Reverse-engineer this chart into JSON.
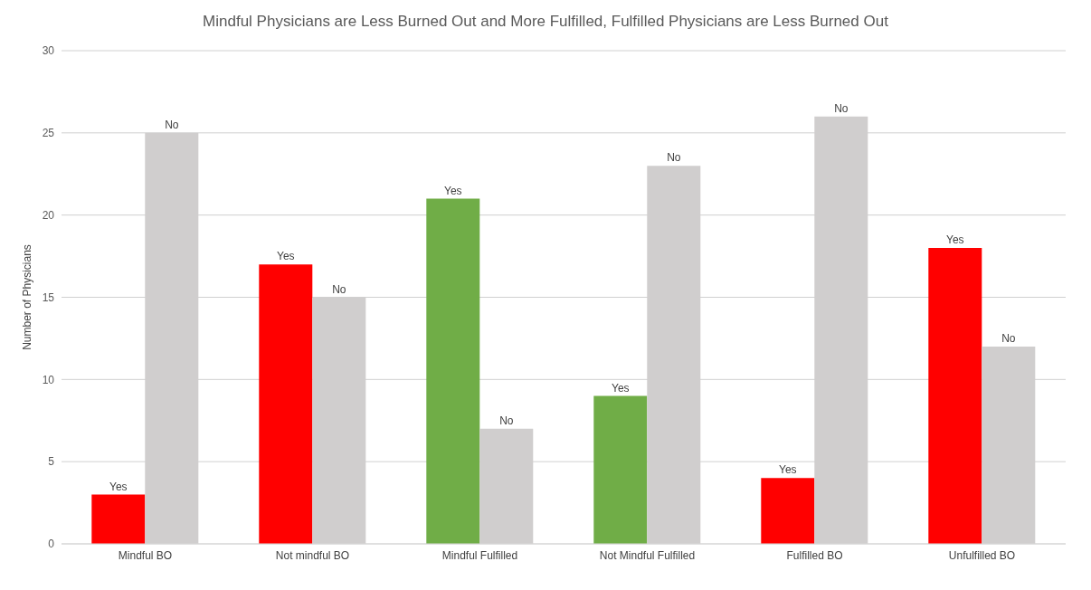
{
  "chart_data": {
    "type": "bar",
    "title": "Mindful Physicians are Less Burned Out and More Fulfilled, Fulfilled Physicians are Less Burned Out",
    "ylabel": "Number of Physicians",
    "categories": [
      "Mindful BO",
      "Not mindful BO",
      "Mindful Fulfilled",
      "Not Mindful Fulfilled",
      "Fulfilled BO",
      "Unfulfilled BO"
    ],
    "series": [
      {
        "colors": [
          "#ff0000",
          "#ff0000",
          "#70ad47",
          "#70ad47",
          "#ff0000",
          "#ff0000"
        ],
        "values": [
          3,
          17,
          21,
          9,
          4,
          18
        ],
        "value_labels": [
          "Yes",
          "Yes",
          "Yes",
          "Yes",
          "Yes",
          "Yes"
        ]
      },
      {
        "color": "#d0cece",
        "values": [
          25,
          15,
          7,
          23,
          26,
          12
        ],
        "value_labels": [
          "No",
          "No",
          "No",
          "No",
          "No",
          "No"
        ]
      }
    ],
    "ylim": [
      0,
      30
    ],
    "yticks": [
      0,
      5,
      10,
      15,
      20,
      25,
      30
    ],
    "grid": "y"
  }
}
